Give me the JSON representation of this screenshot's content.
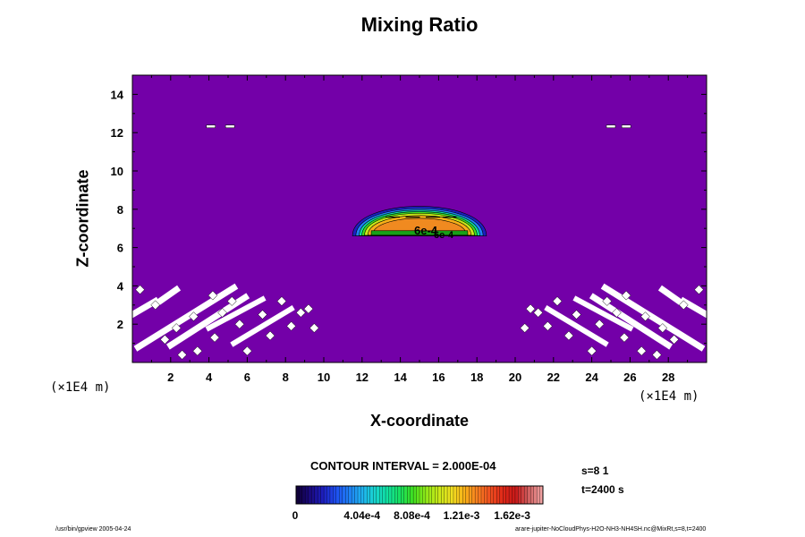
{
  "chart_data": {
    "type": "heatmap",
    "title": "Mixing Ratio",
    "xlabel": "X-coordinate",
    "ylabel": "Z-coordinate",
    "x_unit": "(×1E4 m)",
    "z_unit": "(×1E4 m)",
    "xlim": [
      0,
      30
    ],
    "ylim": [
      0,
      15
    ],
    "x_ticks": [
      "2",
      "4",
      "6",
      "8",
      "10",
      "12",
      "14",
      "16",
      "18",
      "20",
      "22",
      "24",
      "26",
      "28"
    ],
    "y_ticks": [
      "2",
      "4",
      "6",
      "8",
      "10",
      "12",
      "14"
    ],
    "contour_interval": "CONTOUR INTERVAL = 2.000E-04",
    "contour_labels": [
      "6e-4",
      "6e-4"
    ],
    "cloud": {
      "x_center": 15,
      "x_halfwidth": 3.5,
      "z_base": 6.6,
      "z_top": 8.4
    },
    "background_color": "#7300a8",
    "colorbar": {
      "labels": [
        "0",
        "4.04e-4",
        "8.08e-4",
        "1.21e-3",
        "1.62e-3"
      ],
      "min": 0,
      "max": 0.002,
      "colors": [
        "#10003a",
        "#1a0a80",
        "#1d1fc0",
        "#1e4ff0",
        "#1f7ff5",
        "#1fb0f0",
        "#18d4d0",
        "#10e0a0",
        "#18e060",
        "#40e020",
        "#90e818",
        "#c8e818",
        "#f0e020",
        "#f8b018",
        "#f88020",
        "#f05020",
        "#e02818",
        "#c81818",
        "#d06060",
        "#f0a0a0"
      ]
    }
  },
  "info": {
    "s": "s=8 1",
    "t": "t=2400 s"
  },
  "footer": {
    "left": "/usr/bin/gpview 2005-04-24",
    "right": "arare-jupiter-NoCloudPhys-H2O-NH3-NH4SH.nc@MixRt,s=8,t=2400"
  }
}
